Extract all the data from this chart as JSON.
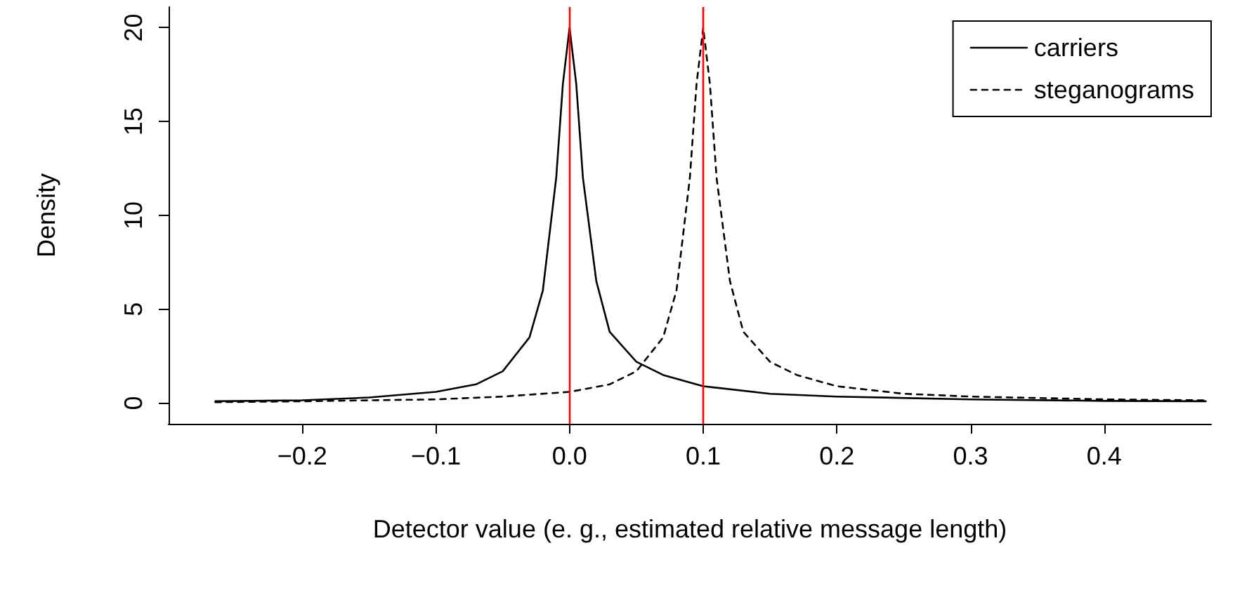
{
  "chart_data": {
    "type": "line",
    "xlabel": "Detector value (e. g., estimated relative message length)",
    "ylabel": "Density",
    "xlim": [
      -0.3,
      0.48
    ],
    "ylim": [
      -1.1,
      21.1
    ],
    "xticks": [
      {
        "value": -0.2,
        "label": "−0.2"
      },
      {
        "value": -0.1,
        "label": "−0.1"
      },
      {
        "value": 0,
        "label": "0.0"
      },
      {
        "value": 0.1,
        "label": "0.1"
      },
      {
        "value": 0.2,
        "label": "0.2"
      },
      {
        "value": 0.3,
        "label": "0.3"
      },
      {
        "value": 0.4,
        "label": "0.4"
      }
    ],
    "yticks": [
      0,
      5,
      10,
      15,
      20
    ],
    "series": [
      {
        "name": "carriers",
        "color": "#000000",
        "line_style": "solid",
        "x": [
          -0.265,
          -0.2,
          -0.15,
          -0.1,
          -0.07,
          -0.05,
          -0.03,
          -0.02,
          -0.01,
          -0.005,
          0,
          0.005,
          0.01,
          0.02,
          0.03,
          0.05,
          0.07,
          0.1,
          0.15,
          0.2,
          0.3,
          0.4,
          0.476
        ],
        "values": [
          0.1,
          0.15,
          0.3,
          0.6,
          1.0,
          1.7,
          3.5,
          6,
          12,
          17,
          20,
          17,
          12,
          6.5,
          3.8,
          2.2,
          1.5,
          0.9,
          0.5,
          0.35,
          0.2,
          0.12,
          0.1
        ]
      },
      {
        "name": "steganograms",
        "color": "#000000",
        "line_style": "dashed",
        "x": [
          -0.265,
          -0.2,
          -0.1,
          -0.05,
          0,
          0.03,
          0.05,
          0.07,
          0.08,
          0.09,
          0.095,
          0.1,
          0.105,
          0.11,
          0.12,
          0.13,
          0.15,
          0.17,
          0.2,
          0.25,
          0.3,
          0.4,
          0.476
        ],
        "values": [
          0.05,
          0.1,
          0.2,
          0.35,
          0.6,
          1.0,
          1.7,
          3.5,
          6,
          12,
          17,
          20,
          17,
          12,
          6.5,
          3.8,
          2.2,
          1.5,
          0.9,
          0.5,
          0.35,
          0.2,
          0.15
        ]
      }
    ],
    "ref_lines": [
      {
        "axis": "x",
        "value": 0,
        "color": "#ff0000"
      },
      {
        "axis": "x",
        "value": 0.1,
        "color": "#ff0000"
      }
    ],
    "legend": "top right",
    "grid": false,
    "marker": "none"
  }
}
